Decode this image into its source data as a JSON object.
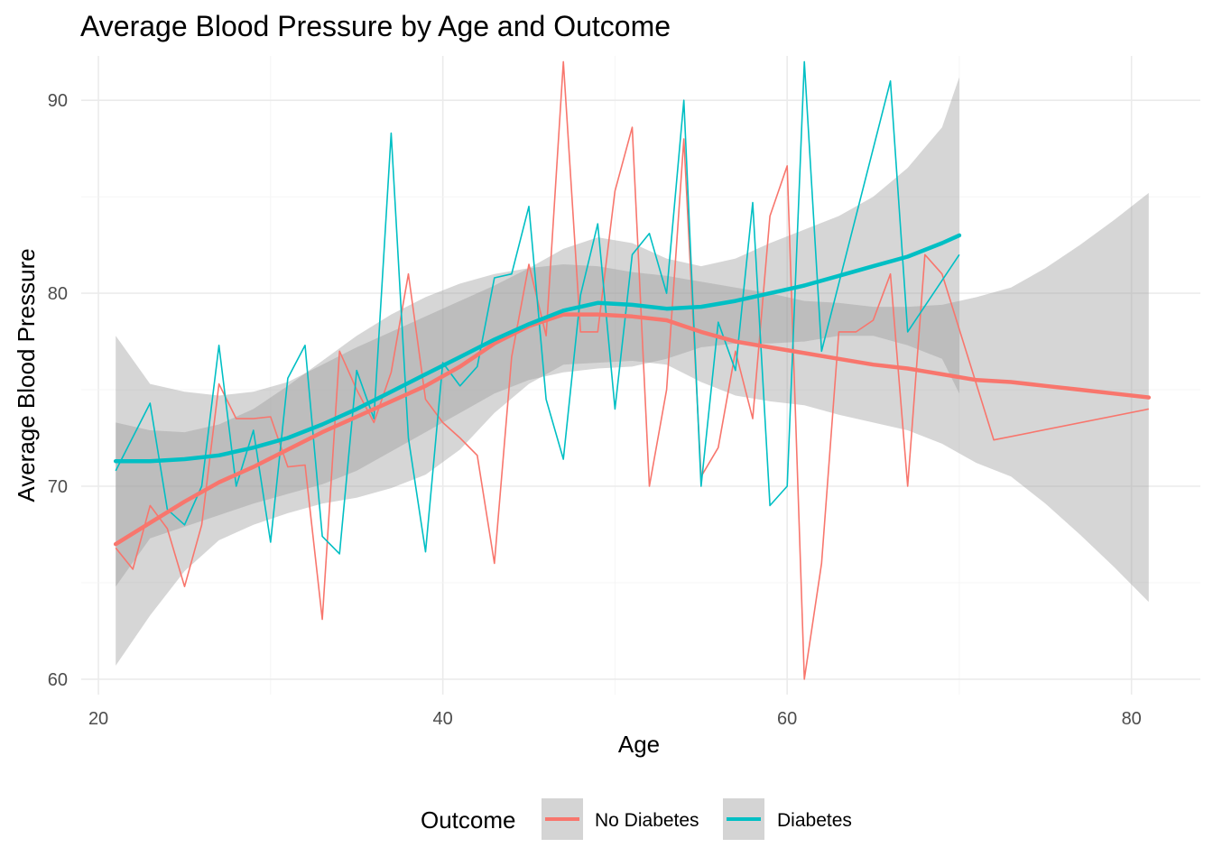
{
  "chart_data": {
    "type": "line",
    "title": "Average Blood Pressure by Age and Outcome",
    "xlabel": "Age",
    "ylabel": "Average Blood Pressure",
    "xlim": [
      19,
      84
    ],
    "ylim": [
      59.2,
      92.3
    ],
    "x_ticks": [
      20,
      40,
      60,
      80
    ],
    "y_ticks": [
      60,
      70,
      80,
      90
    ],
    "grid": true,
    "legend": {
      "title": "Outcome",
      "position": "bottom"
    },
    "series": [
      {
        "name": "No Diabetes",
        "color": "#F8766D",
        "x": [
          21,
          22,
          23,
          24,
          25,
          26,
          27,
          28,
          29,
          30,
          31,
          32,
          33,
          34,
          35,
          36,
          37,
          38,
          39,
          40,
          41,
          42,
          43,
          44,
          45,
          46,
          47,
          48,
          49,
          50,
          51,
          52,
          53,
          54,
          55,
          56,
          57,
          58,
          59,
          60,
          61,
          62,
          63,
          64,
          65,
          66,
          67,
          68,
          69,
          72,
          81
        ],
        "values": [
          66.8,
          65.7,
          69.0,
          67.8,
          64.8,
          68.0,
          75.3,
          73.5,
          73.5,
          73.6,
          71.0,
          71.1,
          63.1,
          77.0,
          75.0,
          73.3,
          75.9,
          81.0,
          74.5,
          73.3,
          72.5,
          71.6,
          66.0,
          76.7,
          81.5,
          77.8,
          92.0,
          78.0,
          78.0,
          85.3,
          88.6,
          70.0,
          75.0,
          88.0,
          70.5,
          72.0,
          77.0,
          73.5,
          84.0,
          86.6,
          60.0,
          66.0,
          78.0,
          78.0,
          78.6,
          81.0,
          70.0,
          82.0,
          81.0,
          72.4,
          74.0
        ],
        "smooth": {
          "x": [
            21,
            23,
            25,
            27,
            29,
            31,
            33,
            35,
            37,
            39,
            41,
            43,
            45,
            47,
            49,
            51,
            53,
            55,
            57,
            59,
            61,
            63,
            65,
            67,
            69,
            71,
            73,
            75,
            77,
            79,
            81
          ],
          "values": [
            67.0,
            68.1,
            69.2,
            70.2,
            71.0,
            71.9,
            72.8,
            73.6,
            74.4,
            75.2,
            76.2,
            77.4,
            78.3,
            78.9,
            78.9,
            78.8,
            78.6,
            78.0,
            77.5,
            77.2,
            76.9,
            76.6,
            76.3,
            76.1,
            75.8,
            75.5,
            75.4,
            75.2,
            75.0,
            74.8,
            74.6
          ]
        },
        "band": {
          "upper": [
            73.3,
            72.9,
            72.8,
            73.2,
            74.0,
            75.2,
            76.5,
            77.8,
            78.9,
            79.8,
            80.5,
            81.0,
            81.3,
            81.5,
            81.4,
            81.1,
            80.9,
            80.6,
            80.3,
            80.0,
            79.6,
            79.5,
            79.3,
            79.3,
            79.4,
            79.8,
            80.3,
            81.3,
            82.5,
            83.8,
            85.2
          ],
          "lower": [
            60.7,
            63.3,
            65.6,
            67.2,
            68.0,
            68.6,
            69.1,
            69.4,
            69.9,
            70.6,
            71.9,
            73.8,
            75.3,
            76.3,
            76.4,
            76.5,
            76.3,
            75.4,
            74.7,
            74.4,
            74.2,
            73.7,
            73.3,
            72.9,
            72.2,
            71.2,
            70.5,
            69.1,
            67.5,
            65.8,
            64.0
          ]
        }
      },
      {
        "name": "Diabetes",
        "color": "#00BFC4",
        "x": [
          21,
          23,
          24,
          25,
          26,
          27,
          28,
          29,
          30,
          31,
          32,
          33,
          34,
          35,
          36,
          37,
          38,
          39,
          40,
          41,
          42,
          43,
          44,
          45,
          46,
          47,
          48,
          49,
          50,
          51,
          52,
          53,
          54,
          55,
          56,
          57,
          58,
          59,
          60,
          61,
          62,
          66,
          67,
          70
        ],
        "values": [
          70.8,
          74.3,
          68.8,
          68.0,
          70.0,
          77.3,
          70.0,
          72.9,
          67.1,
          75.6,
          77.3,
          67.4,
          66.5,
          76.0,
          73.5,
          88.3,
          72.5,
          66.6,
          76.4,
          75.2,
          76.2,
          80.8,
          81.0,
          84.5,
          74.5,
          71.4,
          79.9,
          83.6,
          74.0,
          82.0,
          83.1,
          80.0,
          90.0,
          70.0,
          78.5,
          76.0,
          84.7,
          69.0,
          70.0,
          92.0,
          77.0,
          91.0,
          78.0,
          82.0
        ],
        "smooth": {
          "x": [
            21,
            23,
            25,
            27,
            29,
            31,
            33,
            35,
            37,
            39,
            41,
            43,
            45,
            47,
            49,
            51,
            53,
            55,
            57,
            59,
            61,
            63,
            65,
            67,
            69,
            70
          ],
          "values": [
            71.3,
            71.3,
            71.4,
            71.6,
            72.0,
            72.5,
            73.2,
            74.0,
            74.9,
            75.8,
            76.7,
            77.6,
            78.4,
            79.1,
            79.5,
            79.4,
            79.2,
            79.3,
            79.6,
            80.0,
            80.4,
            80.9,
            81.4,
            81.9,
            82.6,
            83.0
          ]
        },
        "band": {
          "upper": [
            77.8,
            75.3,
            74.9,
            74.7,
            74.9,
            75.4,
            76.3,
            77.2,
            78.0,
            78.8,
            79.6,
            80.4,
            81.3,
            82.3,
            82.9,
            82.6,
            81.8,
            81.4,
            81.8,
            82.6,
            83.3,
            84.0,
            85.0,
            86.5,
            88.6,
            91.2
          ],
          "lower": [
            64.8,
            67.3,
            67.9,
            68.5,
            69.1,
            69.6,
            70.1,
            70.8,
            71.8,
            72.8,
            73.8,
            74.8,
            75.5,
            75.9,
            76.1,
            76.2,
            76.6,
            77.2,
            77.4,
            77.4,
            77.5,
            77.8,
            77.8,
            77.3,
            76.6,
            74.8
          ]
        }
      }
    ]
  }
}
